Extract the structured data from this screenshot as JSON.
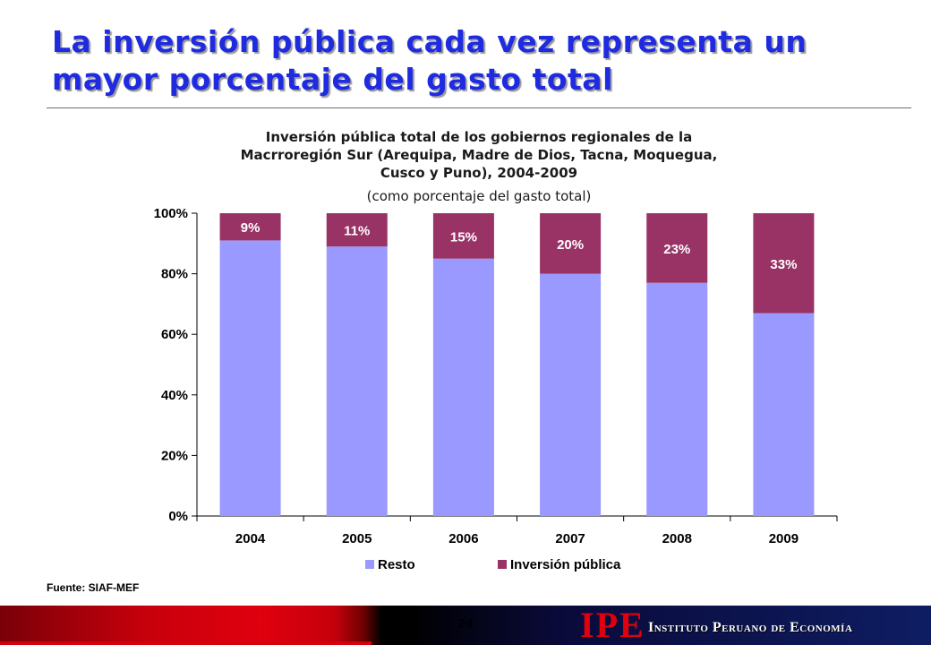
{
  "slide": {
    "title_line1": "La inversión pública cada vez representa un",
    "title_line2": "mayor porcentaje del gasto total",
    "source": "Fuente: SIAF-MEF",
    "page_number": "24"
  },
  "logo": {
    "mark": "IPE",
    "text": "Instituto Peruano de Economía"
  },
  "chart_data": {
    "type": "bar",
    "stacked": true,
    "title_lines": [
      "Inversión pública total de los gobiernos regionales de la",
      "Macrroregión Sur (Arequipa, Madre de Dios, Tacna, Moquegua,",
      "Cusco y Puno), 2004-2009"
    ],
    "subtitle": "(como porcentaje del gasto total)",
    "categories": [
      "2004",
      "2005",
      "2006",
      "2007",
      "2008",
      "2009"
    ],
    "series": [
      {
        "name": "Resto",
        "values": [
          91,
          89,
          85,
          80,
          77,
          67
        ],
        "color": "#9999ff"
      },
      {
        "name": "Inversión pública",
        "values": [
          9,
          11,
          15,
          20,
          23,
          33
        ],
        "color": "#993366"
      }
    ],
    "data_labels": [
      "9%",
      "11%",
      "15%",
      "20%",
      "23%",
      "33%"
    ],
    "ylim": [
      0,
      100
    ],
    "yticks": [
      "0%",
      "20%",
      "40%",
      "60%",
      "80%",
      "100%"
    ],
    "grid": false,
    "legend_position": "bottom"
  }
}
